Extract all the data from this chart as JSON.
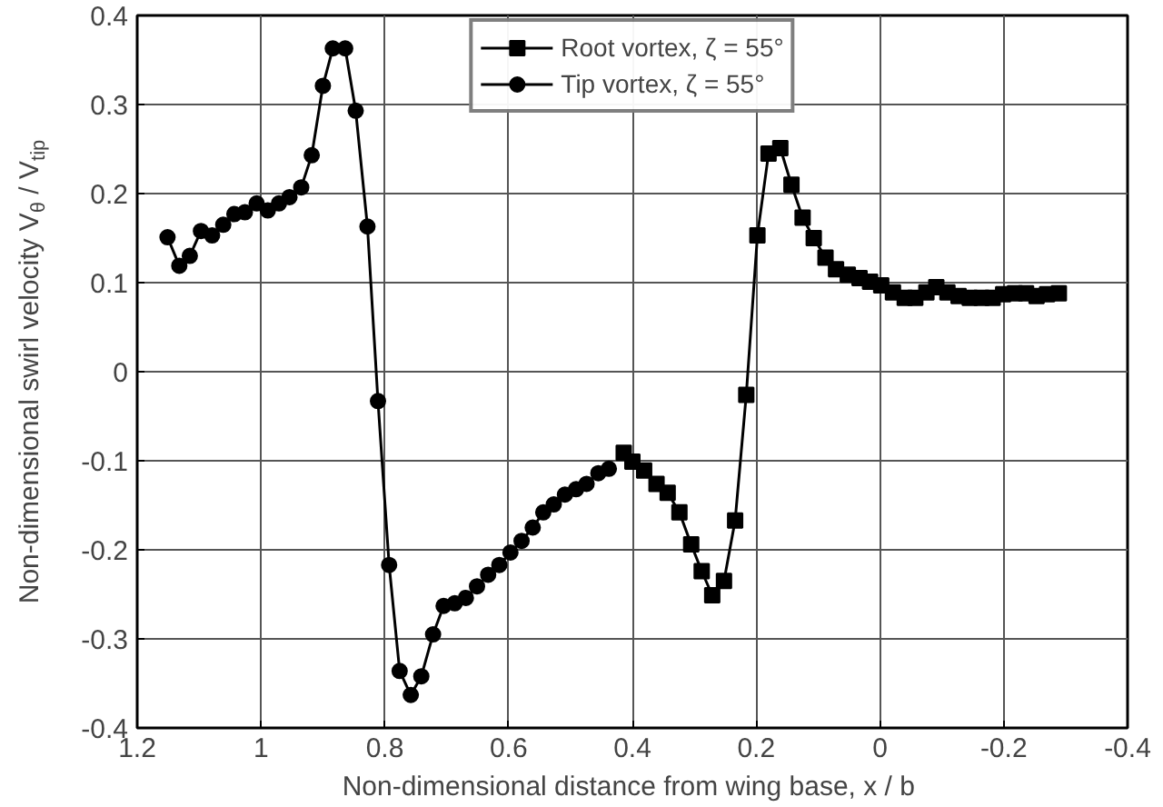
{
  "chart_data": {
    "type": "line",
    "xlabel": "Non-dimensional distance from wing base,  x / b",
    "ylabel": "Non-dimensional swirl velocity V$_{θ}$ / V$_{tip}$",
    "xlim": [
      1.2,
      -0.4
    ],
    "xticks": [
      {
        "value": 1.2,
        "label": "1.2"
      },
      1,
      {
        "value": 0.8,
        "label": "0.8"
      },
      {
        "value": 0.6,
        "label": "0.6"
      },
      {
        "value": 0.4,
        "label": "0.4"
      },
      {
        "value": 0.2,
        "label": "0.2"
      },
      0,
      {
        "value": -0.2,
        "label": "-0.2"
      },
      {
        "value": -0.4,
        "label": "-0.4"
      }
    ],
    "ylim": [
      -0.4,
      0.4
    ],
    "yticks": [
      {
        "value": -0.4,
        "label": "-0.4"
      },
      {
        "value": -0.3,
        "label": "-0.3"
      },
      {
        "value": -0.2,
        "label": "-0.2"
      },
      {
        "value": -0.1,
        "label": "-0.1"
      },
      0,
      {
        "value": 0.1,
        "label": "0.1"
      },
      {
        "value": 0.2,
        "label": "0.2"
      },
      {
        "value": 0.3,
        "label": "0.3"
      },
      {
        "value": 0.4,
        "label": "0.4"
      }
    ],
    "grid": true,
    "legend": "top",
    "line_style": "solid",
    "series": [
      {
        "name": "Root vortex, ζ = 55°",
        "color": "#000000",
        "marker": "square",
        "x": [
          0.414,
          0.4,
          0.381,
          0.361,
          0.343,
          0.324,
          0.305,
          0.288,
          0.271,
          0.252,
          0.234,
          0.216,
          0.198,
          0.18,
          0.161,
          0.143,
          0.125,
          0.107,
          0.088,
          0.071,
          0.052,
          0.033,
          0.016,
          -0.002,
          -0.021,
          -0.04,
          -0.057,
          -0.075,
          -0.091,
          -0.109,
          -0.127,
          -0.145,
          -0.164,
          -0.182,
          -0.199,
          -0.218,
          -0.236,
          -0.253,
          -0.27,
          -0.289
        ],
        "values": [
          -0.091,
          -0.101,
          -0.111,
          -0.126,
          -0.136,
          -0.158,
          -0.194,
          -0.224,
          -0.251,
          -0.235,
          -0.167,
          -0.026,
          0.153,
          0.245,
          0.251,
          0.21,
          0.173,
          0.15,
          0.128,
          0.115,
          0.109,
          0.105,
          0.101,
          0.097,
          0.089,
          0.083,
          0.083,
          0.089,
          0.095,
          0.089,
          0.085,
          0.083,
          0.083,
          0.083,
          0.087,
          0.088,
          0.088,
          0.085,
          0.087,
          0.088
        ]
      },
      {
        "name": "Tip vortex, ζ = 55°",
        "color": "#000000",
        "marker": "circle",
        "x": [
          1.151,
          1.132,
          1.115,
          1.097,
          1.079,
          1.061,
          1.043,
          1.026,
          1.007,
          0.989,
          0.971,
          0.954,
          0.935,
          0.918,
          0.9,
          0.884,
          0.864,
          0.847,
          0.828,
          0.811,
          0.793,
          0.776,
          0.758,
          0.741,
          0.722,
          0.705,
          0.687,
          0.669,
          0.651,
          0.633,
          0.615,
          0.597,
          0.579,
          0.561,
          0.544,
          0.527,
          0.509,
          0.491,
          0.474,
          0.455,
          0.438
        ],
        "values": [
          0.151,
          0.119,
          0.13,
          0.158,
          0.153,
          0.165,
          0.177,
          0.179,
          0.189,
          0.181,
          0.189,
          0.196,
          0.207,
          0.243,
          0.321,
          0.363,
          0.363,
          0.293,
          0.163,
          -0.033,
          -0.217,
          -0.336,
          -0.363,
          -0.342,
          -0.295,
          -0.263,
          -0.26,
          -0.254,
          -0.241,
          -0.228,
          -0.217,
          -0.203,
          -0.19,
          -0.175,
          -0.158,
          -0.149,
          -0.138,
          -0.132,
          -0.126,
          -0.114,
          -0.109
        ]
      }
    ]
  }
}
